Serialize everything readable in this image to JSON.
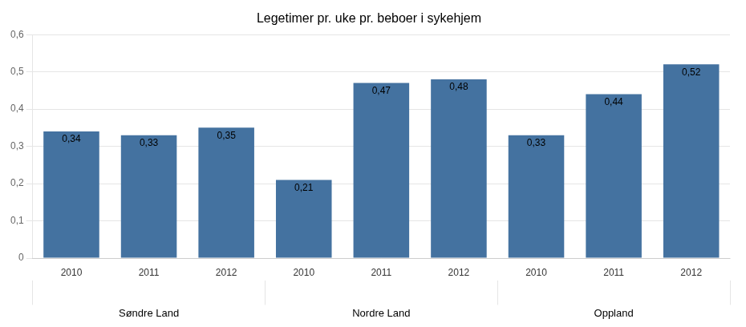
{
  "chart_data": {
    "type": "bar",
    "title": "Legetimer pr. uke pr. beboer i sykehjem",
    "groups": [
      {
        "label": "Søndre Land",
        "categories": [
          "2010",
          "2011",
          "2012"
        ],
        "values": [
          0.34,
          0.33,
          0.35
        ],
        "value_labels": [
          "0,34",
          "0,33",
          "0,35"
        ]
      },
      {
        "label": "Nordre Land",
        "categories": [
          "2010",
          "2011",
          "2012"
        ],
        "values": [
          0.21,
          0.47,
          0.48
        ],
        "value_labels": [
          "0,21",
          "0,47",
          "0,48"
        ]
      },
      {
        "label": "Oppland",
        "categories": [
          "2010",
          "2011",
          "2012"
        ],
        "values": [
          0.33,
          0.44,
          0.52
        ],
        "value_labels": [
          "0,33",
          "0,44",
          "0,52"
        ]
      }
    ],
    "color": "#4472a0",
    "ylim": [
      0,
      0.6
    ],
    "yticks": [
      0,
      {
        "value": 0.1,
        "label": "0,1"
      },
      {
        "value": 0.2,
        "label": "0,2"
      },
      {
        "value": 0.3,
        "label": "0,3"
      },
      {
        "value": 0.4,
        "label": "0,4"
      },
      {
        "value": 0.5,
        "label": "0,5"
      },
      {
        "value": 0.6,
        "label": "0,6"
      }
    ],
    "grid": true,
    "data_labels": true
  }
}
